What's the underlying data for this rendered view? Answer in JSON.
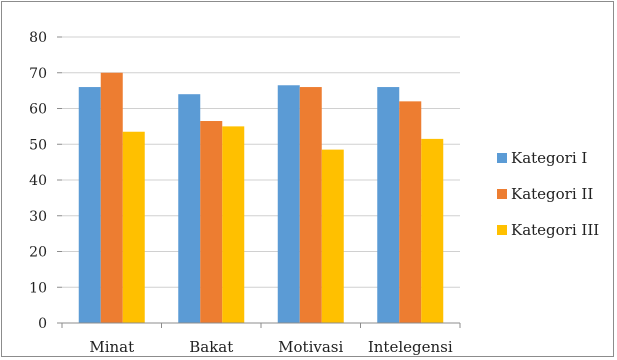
{
  "chart_data": {
    "type": "bar",
    "title": "",
    "xlabel": "",
    "ylabel": "",
    "categories": [
      "Minat",
      "Bakat",
      "Motivasi",
      "Intelegensi"
    ],
    "series": [
      {
        "name": "Kategori I",
        "color": "#5b9bd5",
        "values": [
          66,
          64,
          66.5,
          66
        ]
      },
      {
        "name": "Kategori II",
        "color": "#ed7d31",
        "values": [
          70,
          56.5,
          66,
          62
        ]
      },
      {
        "name": "Kategori III",
        "color": "#ffc000",
        "values": [
          53.5,
          55,
          48.5,
          51.5
        ]
      }
    ],
    "ylim": [
      0,
      80
    ],
    "yticks": [
      0,
      10,
      20,
      30,
      40,
      50,
      60,
      70,
      80
    ],
    "grid": true,
    "legend": "right"
  }
}
